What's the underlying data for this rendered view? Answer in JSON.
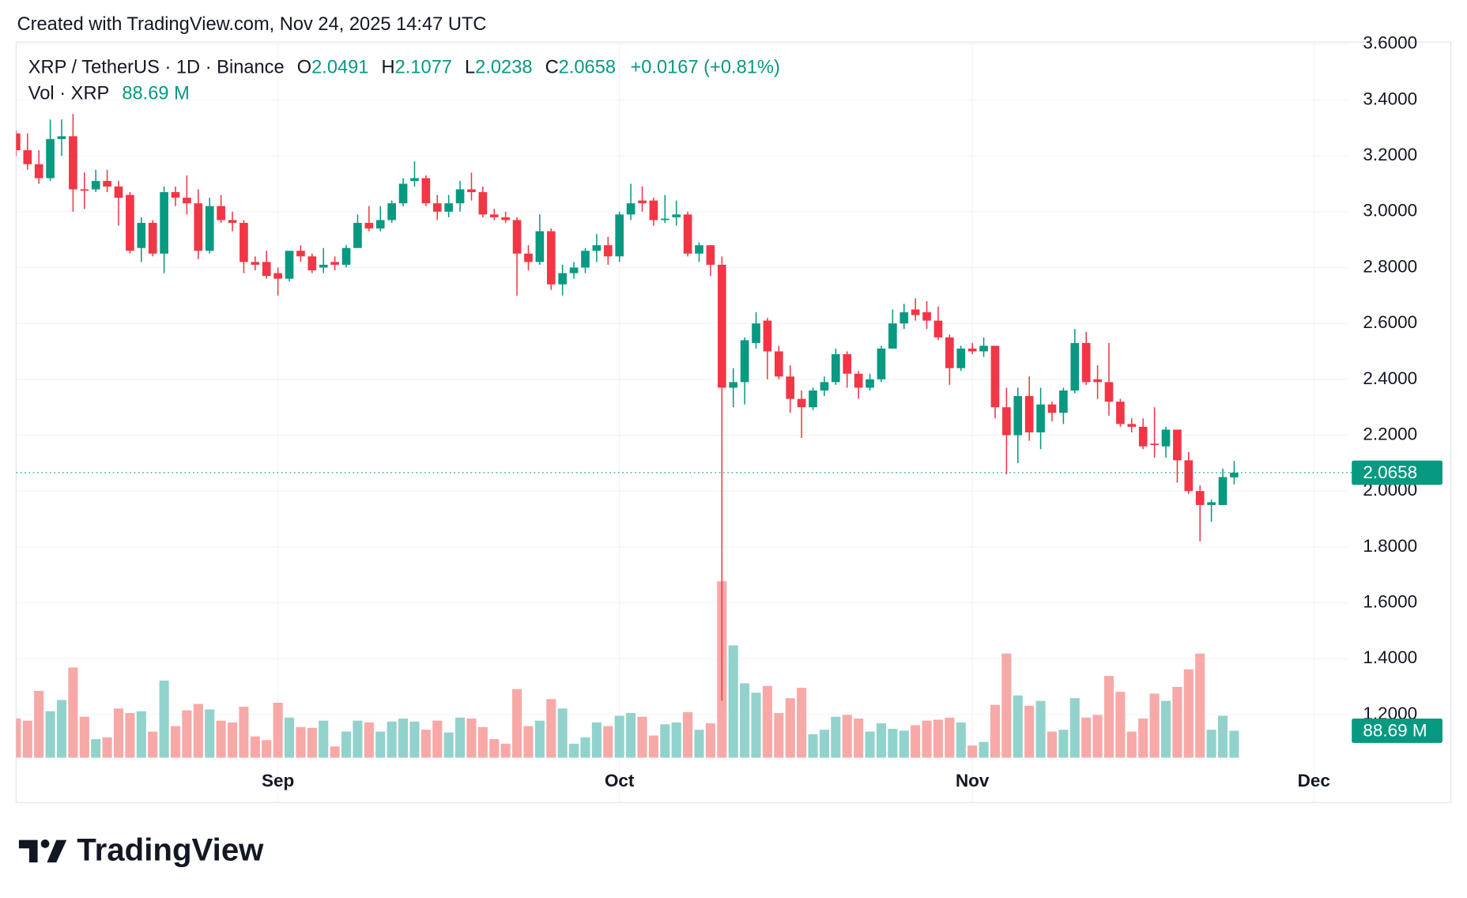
{
  "header": "Created with TradingView.com, Nov 24, 2025 14:47 UTC",
  "chart_data": {
    "type": "candlestick",
    "symbol": "XRP / TetherUS · 1D · Binance",
    "ohlc_letters": {
      "open": "O",
      "high": "H",
      "low": "L",
      "close": "C"
    },
    "change_label": "+0.0167 (+0.81%)",
    "volume_title": "Vol · XRP",
    "volume_last_label": "88.69 M",
    "x": [
      "2025-08-09",
      "2025-08-10",
      "2025-08-11",
      "2025-08-12",
      "2025-08-13",
      "2025-08-14",
      "2025-08-15",
      "2025-08-16",
      "2025-08-17",
      "2025-08-18",
      "2025-08-19",
      "2025-08-20",
      "2025-08-21",
      "2025-08-22",
      "2025-08-23",
      "2025-08-24",
      "2025-08-25",
      "2025-08-26",
      "2025-08-27",
      "2025-08-28",
      "2025-08-29",
      "2025-08-30",
      "2025-08-31",
      "2025-09-01",
      "2025-09-02",
      "2025-09-03",
      "2025-09-04",
      "2025-09-05",
      "2025-09-06",
      "2025-09-07",
      "2025-09-08",
      "2025-09-09",
      "2025-09-10",
      "2025-09-11",
      "2025-09-12",
      "2025-09-13",
      "2025-09-14",
      "2025-09-15",
      "2025-09-16",
      "2025-09-17",
      "2025-09-18",
      "2025-09-19",
      "2025-09-20",
      "2025-09-21",
      "2025-09-22",
      "2025-09-23",
      "2025-09-24",
      "2025-09-25",
      "2025-09-26",
      "2025-09-27",
      "2025-09-28",
      "2025-09-29",
      "2025-09-30",
      "2025-10-01",
      "2025-10-02",
      "2025-10-03",
      "2025-10-04",
      "2025-10-05",
      "2025-10-06",
      "2025-10-07",
      "2025-10-08",
      "2025-10-09",
      "2025-10-10",
      "2025-10-11",
      "2025-10-12",
      "2025-10-13",
      "2025-10-14",
      "2025-10-15",
      "2025-10-16",
      "2025-10-17",
      "2025-10-18",
      "2025-10-19",
      "2025-10-20",
      "2025-10-21",
      "2025-10-22",
      "2025-10-23",
      "2025-10-24",
      "2025-10-25",
      "2025-10-26",
      "2025-10-27",
      "2025-10-28",
      "2025-10-29",
      "2025-10-30",
      "2025-10-31",
      "2025-11-01",
      "2025-11-02",
      "2025-11-03",
      "2025-11-04",
      "2025-11-05",
      "2025-11-06",
      "2025-11-07",
      "2025-11-08",
      "2025-11-09",
      "2025-11-10",
      "2025-11-11",
      "2025-11-12",
      "2025-11-13",
      "2025-11-14",
      "2025-11-15",
      "2025-11-16",
      "2025-11-17",
      "2025-11-18",
      "2025-11-19",
      "2025-11-20",
      "2025-11-21",
      "2025-11-22",
      "2025-11-23",
      "2025-11-24"
    ],
    "open": [
      3.28,
      3.22,
      3.17,
      3.12,
      3.26,
      3.27,
      3.08,
      3.08,
      3.11,
      3.09,
      3.06,
      2.87,
      2.96,
      2.85,
      3.07,
      3.05,
      3.03,
      2.86,
      3.02,
      2.97,
      2.96,
      2.82,
      2.82,
      2.78,
      2.76,
      2.86,
      2.84,
      2.8,
      2.82,
      2.81,
      2.87,
      2.96,
      2.94,
      2.97,
      3.03,
      3.11,
      3.12,
      3.03,
      3.0,
      3.03,
      3.08,
      3.07,
      2.99,
      2.98,
      2.97,
      2.85,
      2.82,
      2.93,
      2.74,
      2.78,
      2.8,
      2.86,
      2.88,
      2.84,
      2.99,
      3.04,
      3.04,
      2.97,
      2.98,
      2.99,
      2.85,
      2.88,
      2.81,
      2.37,
      2.39,
      2.53,
      2.61,
      2.5,
      2.41,
      2.33,
      2.3,
      2.36,
      2.39,
      2.49,
      2.42,
      2.37,
      2.4,
      2.51,
      2.6,
      2.65,
      2.64,
      2.61,
      2.55,
      2.44,
      2.51,
      2.5,
      2.52,
      2.3,
      2.2,
      2.34,
      2.21,
      2.31,
      2.28,
      2.36,
      2.53,
      2.4,
      2.39,
      2.32,
      2.24,
      2.23,
      2.17,
      2.16,
      2.22,
      2.11,
      2.0,
      1.95,
      1.95,
      2.0491
    ],
    "high": [
      3.29,
      3.28,
      3.22,
      3.33,
      3.33,
      3.35,
      3.14,
      3.15,
      3.15,
      3.11,
      3.07,
      2.98,
      2.97,
      3.09,
      3.09,
      3.13,
      3.08,
      3.05,
      3.06,
      3.0,
      2.97,
      2.84,
      2.86,
      2.8,
      2.86,
      2.88,
      2.85,
      2.87,
      2.84,
      2.88,
      2.99,
      3.02,
      3.02,
      3.04,
      3.12,
      3.18,
      3.13,
      3.06,
      3.06,
      3.11,
      3.14,
      3.09,
      3.01,
      3.0,
      2.98,
      2.88,
      2.99,
      2.94,
      2.81,
      2.82,
      2.87,
      2.92,
      2.91,
      3.0,
      3.1,
      3.09,
      3.05,
      3.06,
      3.04,
      3.0,
      2.89,
      2.88,
      2.84,
      2.44,
      2.55,
      2.64,
      2.62,
      2.52,
      2.45,
      2.36,
      2.37,
      2.41,
      2.51,
      2.5,
      2.43,
      2.42,
      2.52,
      2.65,
      2.67,
      2.69,
      2.68,
      2.66,
      2.56,
      2.52,
      2.53,
      2.55,
      2.52,
      2.37,
      2.37,
      2.41,
      2.37,
      2.32,
      2.37,
      2.58,
      2.57,
      2.45,
      2.53,
      2.33,
      2.26,
      2.26,
      2.3,
      2.23,
      2.22,
      2.14,
      2.02,
      1.97,
      2.08,
      2.1077
    ],
    "low": [
      3.2,
      3.15,
      3.1,
      3.11,
      3.2,
      3.0,
      3.01,
      3.07,
      3.07,
      2.95,
      2.85,
      2.82,
      2.84,
      2.78,
      3.02,
      2.99,
      2.83,
      2.85,
      2.96,
      2.93,
      2.78,
      2.79,
      2.76,
      2.7,
      2.75,
      2.82,
      2.78,
      2.78,
      2.79,
      2.8,
      2.87,
      2.93,
      2.93,
      2.96,
      3.02,
      3.09,
      3.02,
      2.97,
      2.98,
      3.0,
      3.04,
      2.98,
      2.97,
      2.96,
      2.7,
      2.79,
      2.81,
      2.72,
      2.7,
      2.76,
      2.78,
      2.82,
      2.81,
      2.82,
      2.97,
      3.0,
      2.95,
      2.96,
      2.95,
      2.84,
      2.82,
      2.77,
      1.25,
      2.3,
      2.31,
      2.51,
      2.4,
      2.4,
      2.28,
      2.19,
      2.29,
      2.34,
      2.38,
      2.37,
      2.33,
      2.36,
      2.39,
      2.51,
      2.58,
      2.61,
      2.58,
      2.54,
      2.38,
      2.43,
      2.49,
      2.48,
      2.26,
      2.06,
      2.1,
      2.18,
      2.15,
      2.25,
      2.24,
      2.35,
      2.38,
      2.33,
      2.27,
      2.23,
      2.21,
      2.15,
      2.12,
      2.12,
      2.03,
      1.99,
      1.82,
      1.89,
      1.95,
      2.0238
    ],
    "close": [
      3.22,
      3.17,
      3.12,
      3.26,
      3.27,
      3.08,
      3.075,
      3.11,
      3.09,
      3.05,
      2.86,
      2.96,
      2.85,
      3.07,
      3.05,
      3.03,
      2.86,
      3.02,
      2.97,
      2.96,
      2.82,
      2.81,
      2.77,
      2.76,
      2.86,
      2.84,
      2.79,
      2.81,
      2.81,
      2.87,
      2.96,
      2.94,
      2.97,
      3.03,
      3.1,
      3.12,
      3.03,
      3.0,
      3.03,
      3.08,
      3.07,
      2.99,
      2.98,
      2.97,
      2.85,
      2.82,
      2.93,
      2.74,
      2.78,
      2.8,
      2.86,
      2.88,
      2.84,
      2.99,
      3.03,
      3.03,
      2.97,
      2.975,
      2.99,
      2.85,
      2.88,
      2.81,
      2.37,
      2.39,
      2.54,
      2.6,
      2.5,
      2.41,
      2.33,
      2.3,
      2.36,
      2.39,
      2.49,
      2.42,
      2.37,
      2.4,
      2.51,
      2.6,
      2.64,
      2.63,
      2.61,
      2.55,
      2.44,
      2.51,
      2.5,
      2.52,
      2.3,
      2.2,
      2.34,
      2.21,
      2.31,
      2.28,
      2.36,
      2.53,
      2.39,
      2.39,
      2.32,
      2.24,
      2.23,
      2.16,
      2.165,
      2.22,
      2.11,
      2.0,
      1.95,
      1.96,
      2.05,
      2.0658
    ],
    "volume": [
      129,
      122,
      220,
      153,
      190,
      297,
      135,
      61,
      67,
      162,
      147,
      153,
      86,
      254,
      104,
      156,
      177,
      159,
      122,
      116,
      168,
      70,
      58,
      181,
      132,
      101,
      98,
      122,
      37,
      86,
      122,
      116,
      86,
      119,
      129,
      119,
      92,
      122,
      83,
      132,
      129,
      101,
      61,
      46,
      226,
      104,
      122,
      193,
      162,
      46,
      67,
      116,
      104,
      138,
      147,
      135,
      73,
      110,
      116,
      150,
      92,
      113,
      581,
      370,
      245,
      214,
      236,
      147,
      196,
      230,
      77,
      92,
      135,
      141,
      129,
      86,
      113,
      95,
      89,
      107,
      122,
      125,
      132,
      116,
      40,
      52,
      174,
      343,
      205,
      171,
      187,
      86,
      92,
      196,
      132,
      141,
      269,
      217,
      86,
      129,
      211,
      187,
      233,
      291,
      343,
      92,
      138,
      88.69
    ],
    "up_color": "#089981",
    "down_color": "#f23645",
    "volume_up_color": "#92d2cc",
    "volume_down_color": "#f7a9a7",
    "ylim": [
      0.885,
      3.607
    ],
    "yticks": [
      {
        "value": 3.6,
        "label": "3.6000"
      },
      {
        "value": 3.4,
        "label": "3.4000"
      },
      {
        "value": 3.2,
        "label": "3.2000"
      },
      {
        "value": 3.0,
        "label": "3.0000"
      },
      {
        "value": 2.8,
        "label": "2.8000"
      },
      {
        "value": 2.6,
        "label": "2.6000"
      },
      {
        "value": 2.4,
        "label": "2.4000"
      },
      {
        "value": 2.2,
        "label": "2.2000"
      },
      {
        "value": 2.0,
        "label": "2.0000"
      },
      {
        "value": 1.8,
        "label": "1.8000"
      },
      {
        "value": 1.6,
        "label": "1.6000"
      },
      {
        "value": 1.4,
        "label": "1.4000"
      },
      {
        "value": 1.2,
        "label": "1.2000"
      }
    ],
    "volume_ylim": [
      0,
      650
    ],
    "xlim": [
      "2025-08-09",
      "2025-12-04"
    ],
    "xticks": [
      {
        "value": "2025-09-01",
        "label": "Sep"
      },
      {
        "value": "2025-10-01",
        "label": "Oct"
      },
      {
        "value": "2025-11-01",
        "label": "Nov"
      },
      {
        "value": "2025-12-01",
        "label": "Dec"
      }
    ],
    "grid": true
  },
  "footer": {
    "brand": "TradingView"
  }
}
